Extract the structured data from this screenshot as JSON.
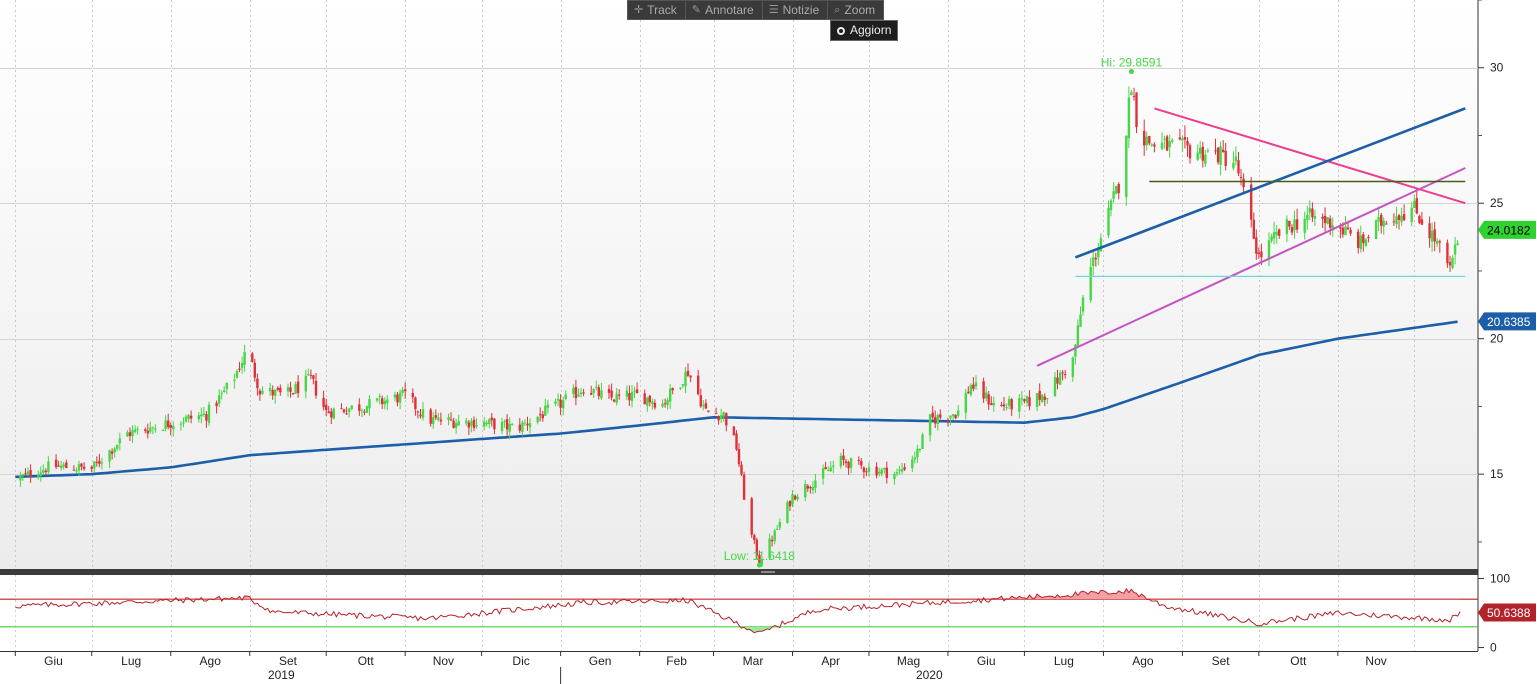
{
  "toolbar": {
    "track": "Track",
    "annotate": "Annotare",
    "news": "Notizie",
    "zoom": "Zoom",
    "refresh": "Aggiorn"
  },
  "icons": {
    "track": "crosshair-icon",
    "annotate": "pencil-icon",
    "news": "document-icon",
    "zoom": "magnifier-icon",
    "refresh": "circle-icon"
  },
  "colors": {
    "up": "#46d646",
    "down": "#e0303a",
    "ma": "#1d5ea8",
    "rsi": "#b8222c",
    "pink_line": "#ee3d8f",
    "magenta_line": "#c454c4",
    "cyan_line": "#6dd9dc",
    "olive_line": "#4a5c17",
    "last_price_box": "#2fd22f",
    "ma_box": "#1d5ea8",
    "rsi_box": "#b3232c"
  },
  "chart_data": [
    {
      "type": "candlestick",
      "title": "",
      "y_ticks": [
        15,
        20,
        25,
        30
      ],
      "ylim": [
        11.5,
        32.5
      ],
      "x_months": [
        "Giu",
        "Lug",
        "Ago",
        "Set",
        "Ott",
        "Nov",
        "Dic",
        "Gen",
        "Feb",
        "Mar",
        "Apr",
        "Mag",
        "Giu",
        "Lug",
        "Ago",
        "Set",
        "Ott",
        "Nov"
      ],
      "x_years": [
        "2019",
        "2020"
      ],
      "labels": {
        "high": "Hi: 29.8591",
        "low": "Low: 11.6418",
        "last": "24.0182",
        "ma": "20.6385"
      },
      "high_value": 29.8591,
      "low_value": 11.6418,
      "last_value": 24.0182,
      "ma_last_value": 20.6385,
      "close_anchors": [
        [
          "2019-06-01",
          14.8
        ],
        [
          "2019-06-15",
          15.3
        ],
        [
          "2019-07-01",
          15.2
        ],
        [
          "2019-07-15",
          16.5
        ],
        [
          "2019-08-01",
          16.9
        ],
        [
          "2019-08-15",
          17.2
        ],
        [
          "2019-08-25",
          18.4
        ],
        [
          "2019-08-31",
          19.6
        ],
        [
          "2019-09-05",
          18.1
        ],
        [
          "2019-09-15",
          17.9
        ],
        [
          "2019-09-25",
          18.5
        ],
        [
          "2019-10-01",
          17.3
        ],
        [
          "2019-10-15",
          17.5
        ],
        [
          "2019-11-01",
          17.9
        ],
        [
          "2019-11-10",
          17.0
        ],
        [
          "2019-12-01",
          16.9
        ],
        [
          "2019-12-15",
          16.7
        ],
        [
          "2020-01-01",
          17.6
        ],
        [
          "2020-01-10",
          18.2
        ],
        [
          "2020-01-20",
          17.8
        ],
        [
          "2020-02-01",
          17.9
        ],
        [
          "2020-02-10",
          17.6
        ],
        [
          "2020-02-20",
          18.8
        ],
        [
          "2020-02-27",
          17.3
        ],
        [
          "2020-03-05",
          17.2
        ],
        [
          "2020-03-10",
          16.0
        ],
        [
          "2020-03-15",
          13.0
        ],
        [
          "2020-03-19",
          11.8
        ],
        [
          "2020-03-25",
          12.8
        ],
        [
          "2020-04-01",
          14.2
        ],
        [
          "2020-04-10",
          14.8
        ],
        [
          "2020-04-20",
          15.5
        ],
        [
          "2020-05-01",
          15.2
        ],
        [
          "2020-05-12",
          15.0
        ],
        [
          "2020-05-20",
          15.8
        ],
        [
          "2020-05-25",
          17.0
        ],
        [
          "2020-06-05",
          17.3
        ],
        [
          "2020-06-10",
          18.3
        ],
        [
          "2020-06-20",
          17.5
        ],
        [
          "2020-07-01",
          17.6
        ],
        [
          "2020-07-10",
          18.0
        ],
        [
          "2020-07-20",
          19.2
        ],
        [
          "2020-07-25",
          22.0
        ],
        [
          "2020-08-01",
          24.0
        ],
        [
          "2020-08-08",
          26.0
        ],
        [
          "2020-08-12",
          29.5
        ],
        [
          "2020-08-15",
          27.5
        ],
        [
          "2020-08-20",
          27.2
        ],
        [
          "2020-09-01",
          27.0
        ],
        [
          "2020-09-15",
          26.8
        ],
        [
          "2020-09-22",
          26.5
        ],
        [
          "2020-10-01",
          23.0
        ],
        [
          "2020-10-10",
          24.0
        ],
        [
          "2020-10-20",
          24.5
        ],
        [
          "2020-10-30",
          24.3
        ],
        [
          "2020-11-10",
          23.5
        ],
        [
          "2020-11-20",
          24.5
        ],
        [
          "2020-12-01",
          24.8
        ],
        [
          "2020-12-10",
          23.5
        ],
        [
          "2020-12-15",
          22.5
        ],
        [
          "2020-12-19",
          24.0
        ]
      ],
      "moving_average": [
        [
          "2019-06-01",
          14.9
        ],
        [
          "2019-07-01",
          15.0
        ],
        [
          "2019-08-01",
          15.25
        ],
        [
          "2019-09-01",
          15.7
        ],
        [
          "2019-10-01",
          15.9
        ],
        [
          "2019-11-01",
          16.1
        ],
        [
          "2019-12-01",
          16.3
        ],
        [
          "2020-01-01",
          16.5
        ],
        [
          "2020-02-01",
          16.8
        ],
        [
          "2020-03-01",
          17.1
        ],
        [
          "2020-04-01",
          17.05
        ],
        [
          "2020-05-01",
          17.0
        ],
        [
          "2020-06-01",
          16.95
        ],
        [
          "2020-07-01",
          16.9
        ],
        [
          "2020-07-20",
          17.1
        ],
        [
          "2020-08-01",
          17.4
        ],
        [
          "2020-09-01",
          18.4
        ],
        [
          "2020-10-01",
          19.4
        ],
        [
          "2020-11-01",
          20.0
        ],
        [
          "2020-12-01",
          20.4
        ],
        [
          "2020-12-19",
          20.64
        ]
      ],
      "trendlines": [
        {
          "name": "pink-descending",
          "from": [
            "2020-08-21",
            28.5
          ],
          "to": [
            "2020-12-21",
            25.0
          ]
        },
        {
          "name": "blue-ascending",
          "from": [
            "2020-07-21",
            23.0
          ],
          "to": [
            "2020-12-21",
            28.5
          ]
        },
        {
          "name": "magenta-ascending",
          "from": [
            "2020-07-06",
            19.0
          ],
          "to": [
            "2020-12-21",
            26.3
          ]
        },
        {
          "name": "olive-horizontal",
          "from": [
            "2020-08-19",
            25.8
          ],
          "to": [
            "2020-12-21",
            25.8
          ]
        },
        {
          "name": "cyan-horizontal",
          "from": [
            "2020-07-21",
            22.3
          ],
          "to": [
            "2020-12-21",
            22.3
          ]
        }
      ]
    },
    {
      "type": "line",
      "title": "",
      "y_ticks": [
        0,
        100
      ],
      "ylim": [
        -5,
        105
      ],
      "last_value": 50.6388,
      "label": "50.6388",
      "upper_level": 70,
      "lower_level": 30,
      "anchors": [
        [
          "2019-06-01",
          60
        ],
        [
          "2019-08-31",
          72
        ],
        [
          "2019-09-10",
          52
        ],
        [
          "2019-11-10",
          42
        ],
        [
          "2020-01-10",
          65
        ],
        [
          "2020-02-20",
          68
        ],
        [
          "2020-03-19",
          20
        ],
        [
          "2020-04-10",
          55
        ],
        [
          "2020-06-10",
          68
        ],
        [
          "2020-08-12",
          82
        ],
        [
          "2020-08-25",
          60
        ],
        [
          "2020-10-01",
          35
        ],
        [
          "2020-11-01",
          50
        ],
        [
          "2020-12-15",
          40
        ],
        [
          "2020-12-19",
          50.6
        ]
      ]
    }
  ]
}
